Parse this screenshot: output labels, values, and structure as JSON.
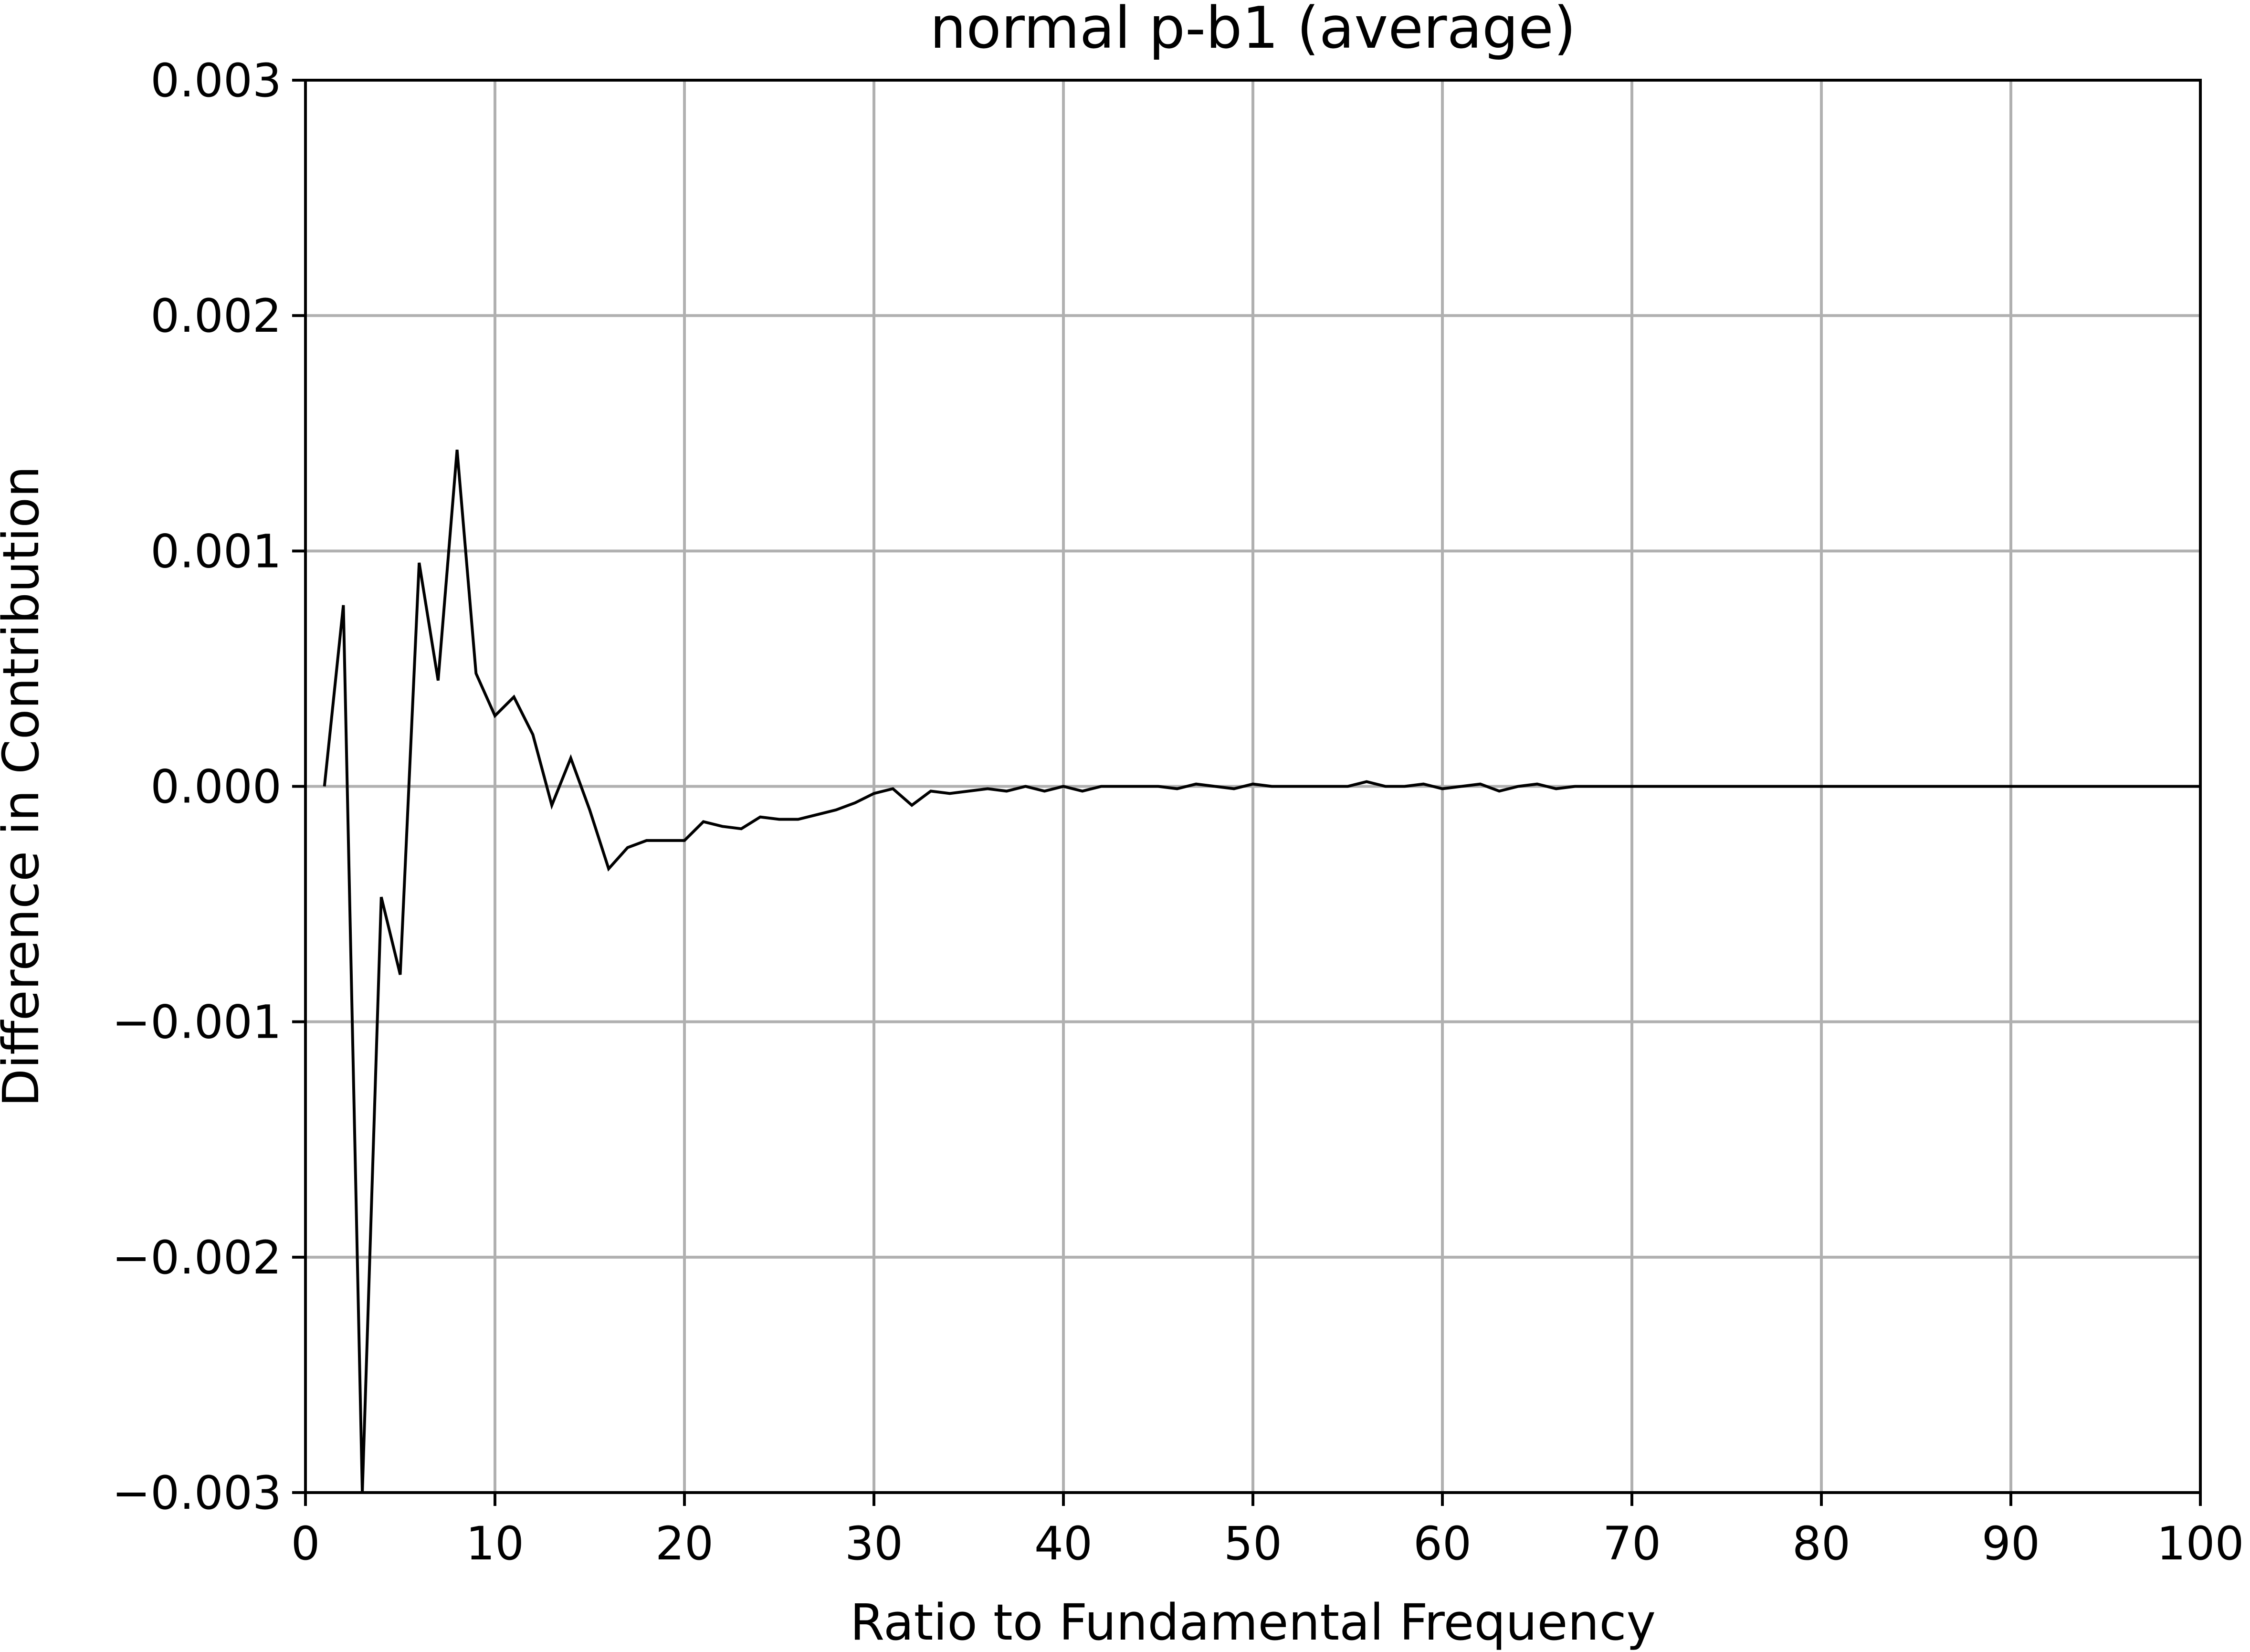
{
  "chart_data": {
    "type": "line",
    "title": "normal p-b1 (average)",
    "xlabel": "Ratio to Fundamental Frequency",
    "ylabel": "Difference in Contribution",
    "xlim": [
      0,
      100
    ],
    "ylim": [
      -0.003,
      0.003
    ],
    "x_ticks": [
      0,
      10,
      20,
      30,
      40,
      50,
      60,
      70,
      80,
      90,
      100
    ],
    "x_tick_labels": [
      "0",
      "10",
      "20",
      "30",
      "40",
      "50",
      "60",
      "70",
      "80",
      "90",
      "100"
    ],
    "y_ticks": [
      -0.003,
      -0.002,
      -0.001,
      0.0,
      0.001,
      0.002,
      0.003
    ],
    "y_tick_labels": [
      "−0.003",
      "−0.002",
      "−0.001",
      "0.000",
      "0.001",
      "0.002",
      "0.003"
    ],
    "grid": true,
    "line_color": "#000000",
    "grid_color": "#b0b0b0",
    "series": [
      {
        "x": [
          1,
          2,
          3,
          4,
          5,
          6,
          7,
          8,
          9,
          10,
          11,
          12,
          13,
          14,
          15,
          16,
          17,
          18,
          19,
          20,
          21,
          22,
          23,
          24,
          25,
          26,
          27,
          28,
          29,
          30,
          31,
          32,
          33,
          34,
          35,
          36,
          37,
          38,
          39,
          40,
          41,
          42,
          43,
          44,
          45,
          46,
          47,
          48,
          49,
          50,
          51,
          52,
          53,
          54,
          55,
          56,
          57,
          58,
          59,
          60,
          61,
          62,
          63,
          64,
          65,
          66,
          67,
          68,
          69,
          70,
          71,
          72,
          73,
          74,
          75,
          76,
          77,
          78,
          79,
          80,
          81,
          82,
          83,
          84,
          85,
          86,
          87,
          88,
          89,
          90,
          91,
          92,
          93,
          94,
          95,
          96,
          97,
          98,
          99,
          100
        ],
        "values": [
          0.0,
          0.00077,
          -0.003,
          -0.00047,
          -0.0008,
          0.00095,
          0.00045,
          0.00143,
          0.00048,
          0.0003,
          0.00038,
          0.00022,
          -8e-05,
          0.00012,
          -0.0001,
          -0.00035,
          -0.00026,
          -0.00023,
          -0.00023,
          -0.00023,
          -0.00015,
          -0.00017,
          -0.00018,
          -0.00013,
          -0.00014,
          -0.00014,
          -0.00012,
          -0.0001,
          -7e-05,
          -3e-05,
          -1e-05,
          -8e-05,
          -2e-05,
          -3e-05,
          -2e-05,
          -1e-05,
          -2e-05,
          0.0,
          -2e-05,
          0.0,
          -2e-05,
          0.0,
          0.0,
          0.0,
          0.0,
          -1e-05,
          1e-05,
          0.0,
          -1e-05,
          1e-05,
          0.0,
          0.0,
          0.0,
          0.0,
          0.0,
          2e-05,
          0.0,
          0.0,
          1e-05,
          -1e-05,
          0.0,
          1e-05,
          -2e-05,
          0.0,
          1e-05,
          -1e-05,
          0.0,
          0.0,
          0.0,
          0.0,
          0.0,
          0.0,
          0.0,
          0.0,
          0.0,
          0.0,
          0.0,
          0.0,
          0.0,
          0.0,
          0.0,
          0.0,
          0.0,
          0.0,
          0.0,
          0.0,
          0.0,
          0.0,
          0.0,
          0.0,
          0.0,
          0.0,
          0.0,
          0.0,
          0.0,
          0.0,
          0.0,
          0.0,
          0.0,
          0.0
        ]
      }
    ]
  }
}
